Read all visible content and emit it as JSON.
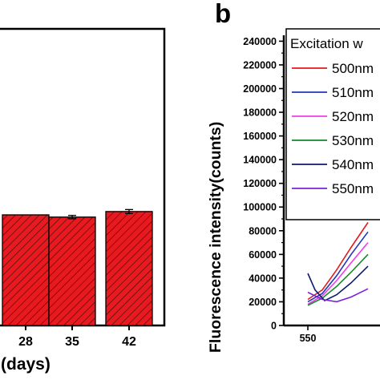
{
  "chart_data": [
    {
      "panel": "a",
      "type": "bar",
      "xlabel_visible": "(days)",
      "categories": [
        "28",
        "35",
        "42"
      ],
      "values": [
        1.0,
        0.98,
        1.03
      ],
      "errors": [
        0.0,
        0.015,
        0.018
      ],
      "bar_color": "#e8191f",
      "hatch": "diagonal",
      "grid": false
    },
    {
      "panel": "b",
      "panel_label": "b",
      "type": "line",
      "ylabel": "Fluorescence intensity(counts)",
      "yticks": [
        "0",
        "20000",
        "40000",
        "60000",
        "80000",
        "100000",
        "120000",
        "140000",
        "160000",
        "180000",
        "200000",
        "220000",
        "240000"
      ],
      "ylim": [
        0,
        245000
      ],
      "xticks": [
        "550"
      ],
      "xlim": [
        540,
        580
      ],
      "legend_title": "Excitation w",
      "legend_position": "top-right",
      "grid": false,
      "series": [
        {
          "name": "500nm",
          "color": "#e41a1c",
          "x": [
            550,
            556,
            562,
            568,
            575
          ],
          "y": [
            22000,
            30000,
            47000,
            66000,
            87000
          ]
        },
        {
          "name": "510nm",
          "color": "#2036b8",
          "x": [
            550,
            556,
            562,
            568,
            575
          ],
          "y": [
            20000,
            27000,
            42000,
            60000,
            79000
          ]
        },
        {
          "name": "520nm",
          "color": "#ee3fe6",
          "x": [
            550,
            556,
            562,
            568,
            575
          ],
          "y": [
            18000,
            25000,
            38000,
            53000,
            70000
          ]
        },
        {
          "name": "530nm",
          "color": "#138a2a",
          "x": [
            550,
            556,
            562,
            568,
            575
          ],
          "y": [
            17000,
            23000,
            33000,
            45000,
            60000
          ]
        },
        {
          "name": "540nm",
          "color": "#0d1a6e",
          "x": [
            550,
            553,
            557,
            562,
            568,
            575
          ],
          "y": [
            44000,
            30000,
            21000,
            26000,
            36000,
            50000
          ]
        },
        {
          "name": "550nm",
          "color": "#7a22d6",
          "x": [
            550,
            556,
            562,
            568,
            575
          ],
          "y": [
            28000,
            22000,
            20000,
            24000,
            31000
          ]
        }
      ]
    }
  ]
}
